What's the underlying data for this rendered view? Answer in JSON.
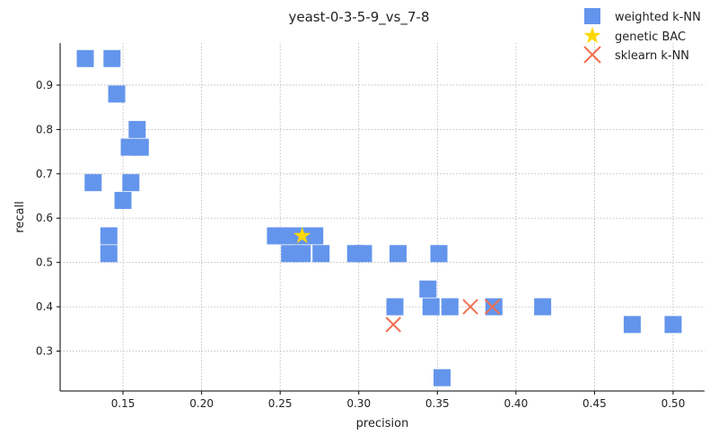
{
  "chart_data": {
    "type": "scatter",
    "title": "yeast-0-3-5-9_vs_7-8",
    "xlabel": "precision",
    "ylabel": "recall",
    "xlim": [
      0.11,
      0.52
    ],
    "ylim": [
      0.21,
      0.995
    ],
    "xticks": [
      0.15,
      0.2,
      0.25,
      0.3,
      0.35,
      0.4,
      0.45,
      0.5
    ],
    "xtick_labels": [
      "0.15",
      "0.20",
      "0.25",
      "0.30",
      "0.35",
      "0.40",
      "0.45",
      "0.50"
    ],
    "yticks": [
      0.3,
      0.4,
      0.5,
      0.6,
      0.7,
      0.8,
      0.9
    ],
    "ytick_labels": [
      "0.3",
      "0.4",
      "0.5",
      "0.6",
      "0.7",
      "0.8",
      "0.9"
    ],
    "grid": true,
    "legend_position": "top-right",
    "series": [
      {
        "name": "weighted k-NN",
        "marker": "square",
        "color": "#6495ED",
        "x": [
          0.126,
          0.143,
          0.146,
          0.159,
          0.154,
          0.161,
          0.131,
          0.155,
          0.15,
          0.141,
          0.141,
          0.247,
          0.256,
          0.266,
          0.272,
          0.256,
          0.264,
          0.276,
          0.298,
          0.303,
          0.325,
          0.351,
          0.344,
          0.346,
          0.358,
          0.323,
          0.386,
          0.417,
          0.474,
          0.5,
          0.353
        ],
        "y": [
          0.96,
          0.96,
          0.88,
          0.8,
          0.76,
          0.76,
          0.68,
          0.68,
          0.64,
          0.56,
          0.52,
          0.56,
          0.56,
          0.56,
          0.56,
          0.52,
          0.52,
          0.52,
          0.52,
          0.52,
          0.52,
          0.52,
          0.44,
          0.4,
          0.4,
          0.4,
          0.4,
          0.4,
          0.36,
          0.36,
          0.24
        ]
      },
      {
        "name": "genetic BAC",
        "marker": "star",
        "color": "#FFD700",
        "x": [
          0.264
        ],
        "y": [
          0.56
        ]
      },
      {
        "name": "sklearn k-NN",
        "marker": "x",
        "color": "#F07050",
        "x": [
          0.322,
          0.371,
          0.385
        ],
        "y": [
          0.36,
          0.4,
          0.4
        ]
      }
    ]
  }
}
